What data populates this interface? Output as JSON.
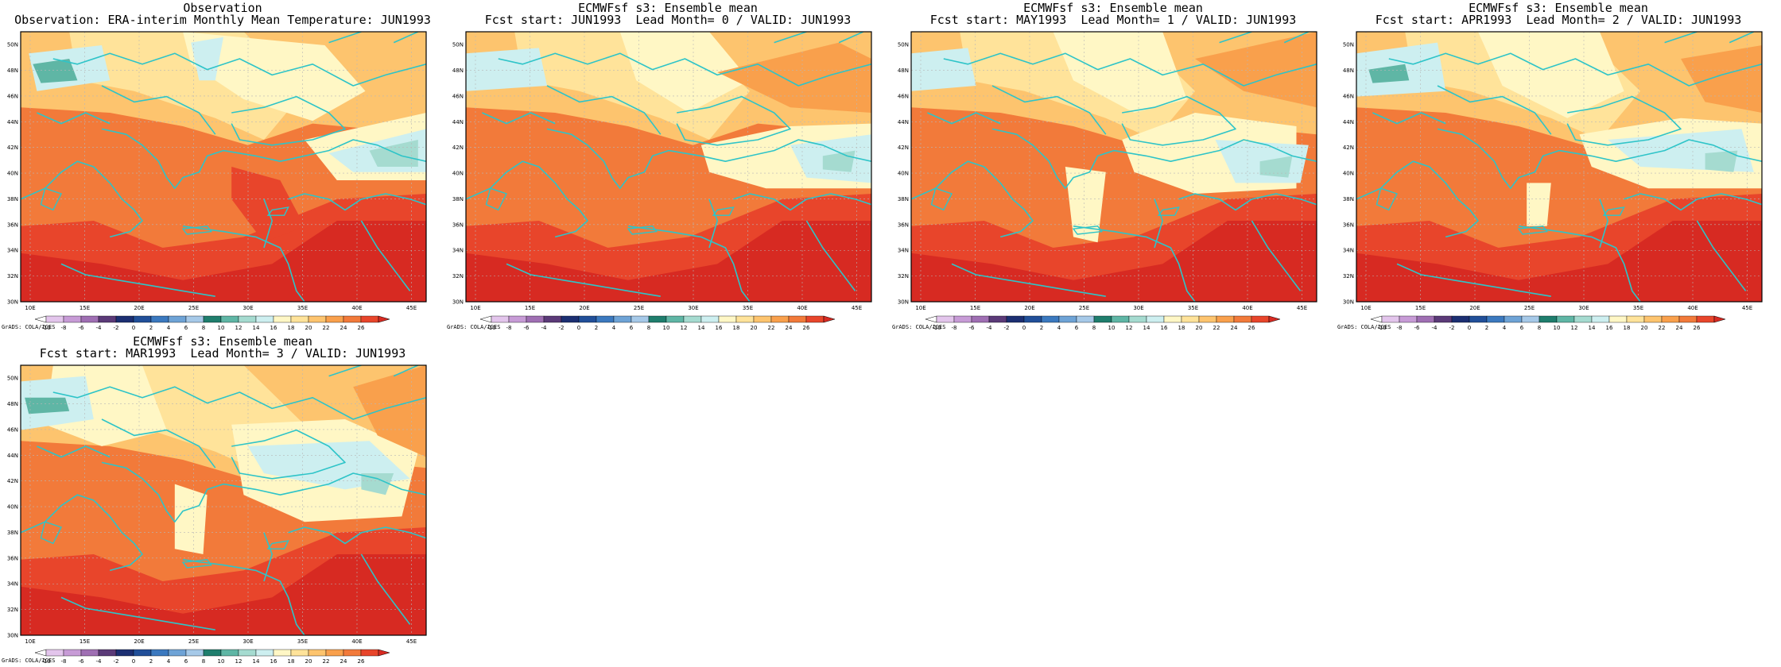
{
  "panels": [
    {
      "title1": "Observation",
      "title2": "Observation: ERA-interim Monthly Mean Temperature: JUN1993",
      "variant": 0
    },
    {
      "title1": "ECMWFsf s3: Ensemble mean",
      "title2": "Fcst start: JUN1993  Lead Month= 0 / VALID: JUN1993",
      "variant": 1
    },
    {
      "title1": "ECMWFsf s3: Ensemble mean",
      "title2": "Fcst start: MAY1993  Lead Month= 1 / VALID: JUN1993",
      "variant": 2
    },
    {
      "title1": "ECMWFsf s3: Ensemble mean",
      "title2": "Fcst start: APR1993  Lead Month= 2 / VALID: JUN1993",
      "variant": 3
    },
    {
      "title1": "ECMWFsf s3: Ensemble mean",
      "title2": "Fcst start: MAR1993  Lead Month= 3 / VALID: JUN1993",
      "variant": 4
    }
  ],
  "lat_labels": [
    "30N",
    "32N",
    "34N",
    "36N",
    "38N",
    "40N",
    "42N",
    "44N",
    "46N",
    "48N",
    "50N"
  ],
  "lon_labels": [
    "10E",
    "15E",
    "20E",
    "25E",
    "30E",
    "35E",
    "40E",
    "45E"
  ],
  "colorbar": {
    "labels": [
      "-10",
      "-8",
      "-6",
      "-4",
      "-2",
      "0",
      "2",
      "4",
      "6",
      "8",
      "10",
      "12",
      "14",
      "16",
      "18",
      "20",
      "22",
      "24",
      "26"
    ],
    "colors": [
      "#ffffff",
      "#e3c5ec",
      "#c79bd6",
      "#9f6fb3",
      "#5b3a78",
      "#1c2f72",
      "#214f99",
      "#3b79bf",
      "#6ea3d6",
      "#a6c9e8",
      "#1f7e6d",
      "#5fb6a5",
      "#a5dbd0",
      "#cdeff0",
      "#fff7c5",
      "#ffe39a",
      "#fdc46e",
      "#f9a04c",
      "#f27a3a",
      "#e8452b",
      "#d72a22"
    ],
    "units_note": "GrADS: COLA/IGES"
  },
  "colors": {
    "coast": "#2ec4c8",
    "grid": "#b7b7b7"
  }
}
